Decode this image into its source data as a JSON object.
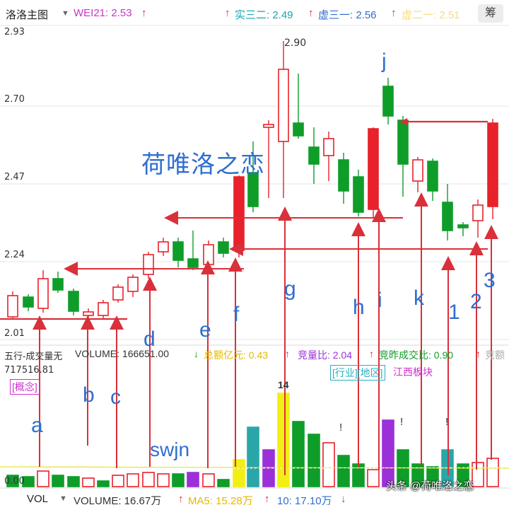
{
  "header": {
    "title": "洛洛主图",
    "dropdown_icon": "chevron-down-icon",
    "wei21": "WEI21: 2.53",
    "shisan": "实三二: 2.49",
    "xusan": "虚三一: 2.56",
    "faded": "虚二一: 2.51",
    "chip_button": "筹"
  },
  "price_axis": {
    "ticks": [
      "2.93",
      "2.70",
      "2.47",
      "2.24",
      "2.01"
    ],
    "high_label": "2.90"
  },
  "watermark": "荷唯洛之恋",
  "volume_panel": {
    "title": "五行-成交量无",
    "volume": "VOLUME: 166651.00",
    "amount": "总额亿元: 0.43",
    "ratio": "竞量比: 2.04",
    "bid_ratio": "竞昨成交比: 0.90",
    "cut_label": "竞额",
    "axis_top": "717516.81",
    "axis_bottom": "0.00",
    "concept_tag": "[概念]",
    "industry_tag": "[行业][地区]",
    "region_tag": "江西板块",
    "peak_label": "14"
  },
  "bottom_bar": {
    "vol_tab": "VOL",
    "volume": "VOLUME: 16.67万",
    "ma5": "MA5: 15.28万",
    "ma10": "10: 17.10万",
    "credit": "头条 @荷唯洛之恋"
  },
  "annotations": {
    "letters": [
      "a",
      "b",
      "c",
      "d",
      "e",
      "f",
      "g",
      "h",
      "i",
      "j",
      "k",
      "1",
      "2",
      "3"
    ],
    "swjn": "swjn",
    "marks": [
      "!",
      "!",
      "!"
    ]
  },
  "colors": {
    "up": "#e8212a",
    "down": "#0f9d2a",
    "annotation": "#2f6fd0",
    "purple": "#9b30d9",
    "yellow": "#f2ef14",
    "teal": "#2aa6a8",
    "header_magenta": "#cc33cc",
    "header_cyan": "#17a5b3"
  }
}
